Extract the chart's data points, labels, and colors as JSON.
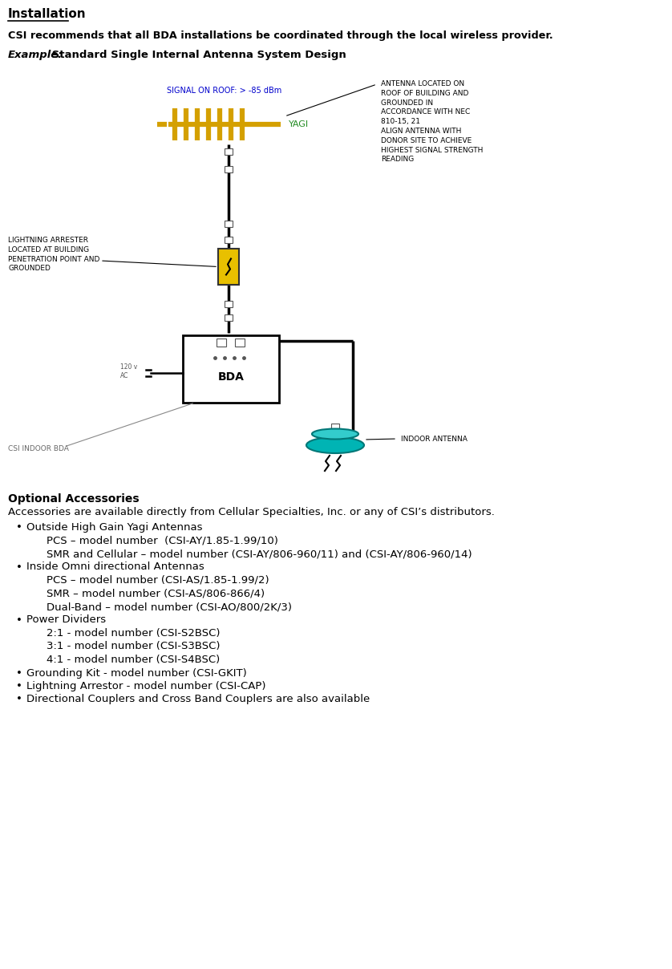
{
  "title": "Installation",
  "intro_text": "CSI recommends that all BDA installations be coordinated through the local wireless provider.",
  "example_italic": "Example:",
  "example_rest": " Standard Single Internal Antenna System Design",
  "optional_accessories_title": "Optional Accessories",
  "accessories_intro": "Accessories are available directly from Cellular Specialties, Inc. or any of CSI’s distributors.",
  "bullet_items": [
    {
      "level": 0,
      "text": "Outside High Gain Yagi Antennas"
    },
    {
      "level": 1,
      "text": "PCS – model number  (CSI-AY/1.85-1.99/10)"
    },
    {
      "level": 1,
      "text": "SMR and Cellular – model number (CSI-AY/806-960/11) and (CSI-AY/806-960/14)"
    },
    {
      "level": 0,
      "text": "Inside Omni directional Antennas"
    },
    {
      "level": 1,
      "text": "PCS – model number (CSI-AS/1.85-1.99/2)"
    },
    {
      "level": 1,
      "text": "SMR – model number (CSI-AS/806-866/4)"
    },
    {
      "level": 1,
      "text": "Dual-Band – model number (CSI-AO/800/2K/3)"
    },
    {
      "level": 0,
      "text": "Power Dividers"
    },
    {
      "level": 1,
      "text": "2:1 - model number (CSI-S2BSC)"
    },
    {
      "level": 1,
      "text": "3:1 - model number (CSI-S3BSC)"
    },
    {
      "level": 1,
      "text": "4:1 - model number (CSI-S4BSC)"
    },
    {
      "level": 0,
      "text": "Grounding Kit - model number (CSI-GKIT)"
    },
    {
      "level": 0,
      "text": "Lightning Arrestor - model number (CSI-CAP)"
    },
    {
      "level": 0,
      "text": "Directional Couplers and Cross Band Couplers are also available"
    }
  ],
  "diagram": {
    "signal_label": "SIGNAL ON ROOF: > -85 dBm",
    "yagi_label": "YAGI",
    "antenna_note": "ANTENNA LOCATED ON\nROOF OF BUILDING AND\nGROUNDED IN\nACCORDANCE WITH NEC\n810-15, 21\nALIGN ANTENNA WITH\nDONOR SITE TO ACHIEVE\nHIGHEST SIGNAL STRENGTH\nREADING",
    "lightning_note": "LIGHTNING ARRESTER\nLOCATED AT BUILDING\nPENETRATION POINT AND\nGROUNDED",
    "bda_label": "BDA",
    "power_label": "120 v\nAC",
    "csi_indoor_label": "CSI INDOOR BDA",
    "indoor_antenna_label": "INDOOR ANTENNA"
  },
  "bg_color": "#ffffff",
  "text_color": "#000000"
}
